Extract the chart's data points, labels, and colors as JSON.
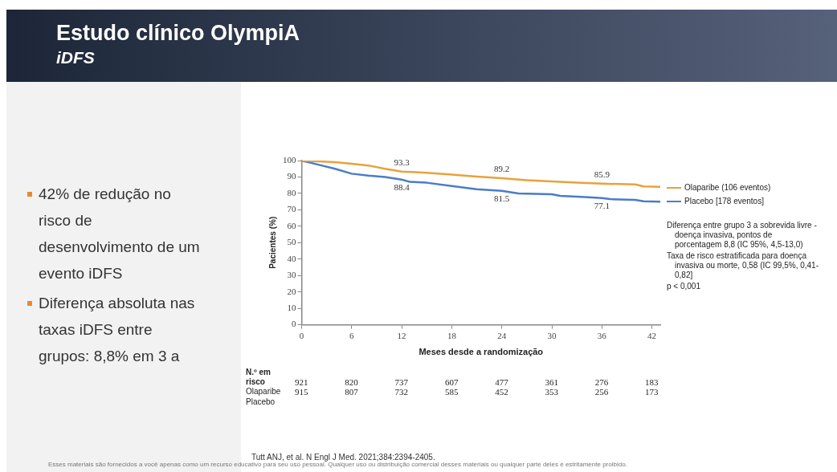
{
  "chart_data": {
    "type": "line",
    "title": "Estudo clínico OlympiA",
    "subtitle": "iDFS",
    "xlabel": "Meses desde a randomização",
    "ylabel": "Pacientes (%)",
    "xlim": [
      0,
      43
    ],
    "xticks": [
      0,
      6,
      12,
      18,
      24,
      30,
      36,
      42
    ],
    "ylim": [
      0,
      100
    ],
    "yticks": [
      0,
      10,
      20,
      30,
      40,
      50,
      60,
      70,
      80,
      90,
      100
    ],
    "grid": false,
    "legend": "right",
    "marker": "none",
    "line_style": "solid",
    "series": [
      {
        "name": "Olaparibe (106 eventos)",
        "color": "#e8a23a",
        "x": [
          0,
          2,
          4,
          6,
          8,
          10,
          12,
          15,
          18,
          21,
          24,
          27,
          30,
          33,
          36,
          40,
          41,
          43
        ],
        "values": [
          100,
          99.5,
          99,
          98,
          97,
          95,
          93.3,
          92.5,
          91.5,
          90.2,
          89.2,
          88,
          87.3,
          86.5,
          85.9,
          85.5,
          84.2,
          84
        ]
      },
      {
        "name": "Placebo [178 eventos]",
        "color": "#4a7cc9",
        "x": [
          0,
          2,
          4,
          6,
          8,
          10,
          12,
          13,
          15,
          18,
          21,
          24,
          26,
          30,
          31,
          34,
          36,
          37,
          40,
          41,
          43
        ],
        "values": [
          100,
          97.5,
          95,
          92,
          90.8,
          90,
          88.4,
          87,
          86.5,
          84.5,
          82.5,
          81.5,
          80,
          79.5,
          78.5,
          77.8,
          77.1,
          76.5,
          76,
          75.2,
          75
        ]
      }
    ],
    "annotations": [
      {
        "text": "93.3",
        "x": 12,
        "y": 93.3
      },
      {
        "text": "88.4",
        "x": 12,
        "y": 88.4
      },
      {
        "text": "89.2",
        "x": 24,
        "y": 89.2
      },
      {
        "text": "81.5",
        "x": 24,
        "y": 81.5
      },
      {
        "text": "85.9",
        "x": 36,
        "y": 85.9
      },
      {
        "text": "77.1",
        "x": 36,
        "y": 77.1
      },
      "Diferença entre grupo 3 a sobrevida livre - doença invasiva, pontos de porcentagem 8,8 (IC 95%, 4,5-13,0)",
      "Taxa de risco estratificada para doença invasiva ou morte, 0,58 (IC 99,5%, 0,41-0,82]",
      "p < 0,001",
      "42% de redução no risco de desenvolvimento de um evento iDFS",
      "Diferença absoluta nas taxas iDFS entre grupos: 8,8% em 3 a",
      "N.º em risco",
      "Olaparibe",
      "Placebo",
      "921 820 737 607 477 361 276 183",
      "915 807 732 585 452 353 256 173",
      "Tutt ANJ, et al. N Engl J Med. 2021;384:2394-2405.",
      "Esses materiais são fornecidos a você apenas como um recurso educativo para seu uso pessoal. Qualquer uso ou distribuição comercial desses materiais ou qualquer parte deles é estritamente proibido."
    ]
  }
}
